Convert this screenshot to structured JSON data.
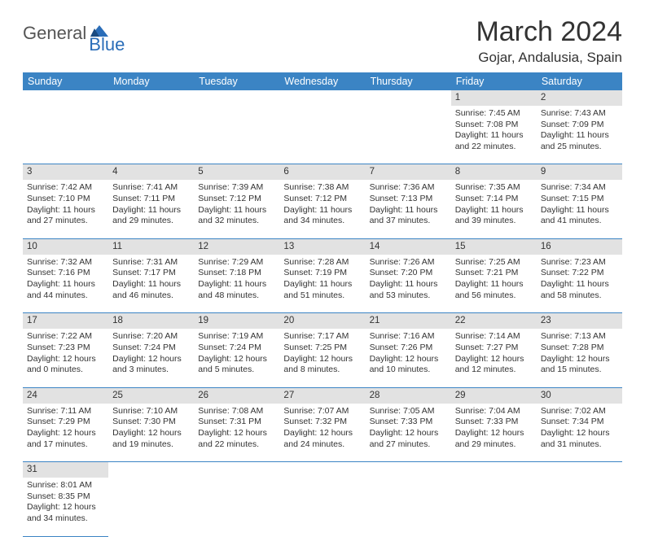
{
  "logo": {
    "text1": "General",
    "text2": "Blue"
  },
  "title": "March 2024",
  "location": "Gojar, Andalusia, Spain",
  "colors": {
    "header_bg": "#3b84c4",
    "header_text": "#ffffff",
    "daynum_bg": "#e2e2e2",
    "border": "#3b84c4",
    "logo_blue": "#2a6db8"
  },
  "day_headers": [
    "Sunday",
    "Monday",
    "Tuesday",
    "Wednesday",
    "Thursday",
    "Friday",
    "Saturday"
  ],
  "weeks": [
    {
      "nums": [
        "",
        "",
        "",
        "",
        "",
        "1",
        "2"
      ],
      "cells": [
        null,
        null,
        null,
        null,
        null,
        {
          "sunrise": "7:45 AM",
          "sunset": "7:08 PM",
          "daylight": "11 hours and 22 minutes."
        },
        {
          "sunrise": "7:43 AM",
          "sunset": "7:09 PM",
          "daylight": "11 hours and 25 minutes."
        }
      ]
    },
    {
      "nums": [
        "3",
        "4",
        "5",
        "6",
        "7",
        "8",
        "9"
      ],
      "cells": [
        {
          "sunrise": "7:42 AM",
          "sunset": "7:10 PM",
          "daylight": "11 hours and 27 minutes."
        },
        {
          "sunrise": "7:41 AM",
          "sunset": "7:11 PM",
          "daylight": "11 hours and 29 minutes."
        },
        {
          "sunrise": "7:39 AM",
          "sunset": "7:12 PM",
          "daylight": "11 hours and 32 minutes."
        },
        {
          "sunrise": "7:38 AM",
          "sunset": "7:12 PM",
          "daylight": "11 hours and 34 minutes."
        },
        {
          "sunrise": "7:36 AM",
          "sunset": "7:13 PM",
          "daylight": "11 hours and 37 minutes."
        },
        {
          "sunrise": "7:35 AM",
          "sunset": "7:14 PM",
          "daylight": "11 hours and 39 minutes."
        },
        {
          "sunrise": "7:34 AM",
          "sunset": "7:15 PM",
          "daylight": "11 hours and 41 minutes."
        }
      ]
    },
    {
      "nums": [
        "10",
        "11",
        "12",
        "13",
        "14",
        "15",
        "16"
      ],
      "cells": [
        {
          "sunrise": "7:32 AM",
          "sunset": "7:16 PM",
          "daylight": "11 hours and 44 minutes."
        },
        {
          "sunrise": "7:31 AM",
          "sunset": "7:17 PM",
          "daylight": "11 hours and 46 minutes."
        },
        {
          "sunrise": "7:29 AM",
          "sunset": "7:18 PM",
          "daylight": "11 hours and 48 minutes."
        },
        {
          "sunrise": "7:28 AM",
          "sunset": "7:19 PM",
          "daylight": "11 hours and 51 minutes."
        },
        {
          "sunrise": "7:26 AM",
          "sunset": "7:20 PM",
          "daylight": "11 hours and 53 minutes."
        },
        {
          "sunrise": "7:25 AM",
          "sunset": "7:21 PM",
          "daylight": "11 hours and 56 minutes."
        },
        {
          "sunrise": "7:23 AM",
          "sunset": "7:22 PM",
          "daylight": "11 hours and 58 minutes."
        }
      ]
    },
    {
      "nums": [
        "17",
        "18",
        "19",
        "20",
        "21",
        "22",
        "23"
      ],
      "cells": [
        {
          "sunrise": "7:22 AM",
          "sunset": "7:23 PM",
          "daylight": "12 hours and 0 minutes."
        },
        {
          "sunrise": "7:20 AM",
          "sunset": "7:24 PM",
          "daylight": "12 hours and 3 minutes."
        },
        {
          "sunrise": "7:19 AM",
          "sunset": "7:24 PM",
          "daylight": "12 hours and 5 minutes."
        },
        {
          "sunrise": "7:17 AM",
          "sunset": "7:25 PM",
          "daylight": "12 hours and 8 minutes."
        },
        {
          "sunrise": "7:16 AM",
          "sunset": "7:26 PM",
          "daylight": "12 hours and 10 minutes."
        },
        {
          "sunrise": "7:14 AM",
          "sunset": "7:27 PM",
          "daylight": "12 hours and 12 minutes."
        },
        {
          "sunrise": "7:13 AM",
          "sunset": "7:28 PM",
          "daylight": "12 hours and 15 minutes."
        }
      ]
    },
    {
      "nums": [
        "24",
        "25",
        "26",
        "27",
        "28",
        "29",
        "30"
      ],
      "cells": [
        {
          "sunrise": "7:11 AM",
          "sunset": "7:29 PM",
          "daylight": "12 hours and 17 minutes."
        },
        {
          "sunrise": "7:10 AM",
          "sunset": "7:30 PM",
          "daylight": "12 hours and 19 minutes."
        },
        {
          "sunrise": "7:08 AM",
          "sunset": "7:31 PM",
          "daylight": "12 hours and 22 minutes."
        },
        {
          "sunrise": "7:07 AM",
          "sunset": "7:32 PM",
          "daylight": "12 hours and 24 minutes."
        },
        {
          "sunrise": "7:05 AM",
          "sunset": "7:33 PM",
          "daylight": "12 hours and 27 minutes."
        },
        {
          "sunrise": "7:04 AM",
          "sunset": "7:33 PM",
          "daylight": "12 hours and 29 minutes."
        },
        {
          "sunrise": "7:02 AM",
          "sunset": "7:34 PM",
          "daylight": "12 hours and 31 minutes."
        }
      ]
    },
    {
      "nums": [
        "31",
        "",
        "",
        "",
        "",
        "",
        ""
      ],
      "cells": [
        {
          "sunrise": "8:01 AM",
          "sunset": "8:35 PM",
          "daylight": "12 hours and 34 minutes."
        },
        null,
        null,
        null,
        null,
        null,
        null
      ]
    }
  ],
  "labels": {
    "sunrise": "Sunrise:",
    "sunset": "Sunset:",
    "daylight": "Daylight:"
  }
}
